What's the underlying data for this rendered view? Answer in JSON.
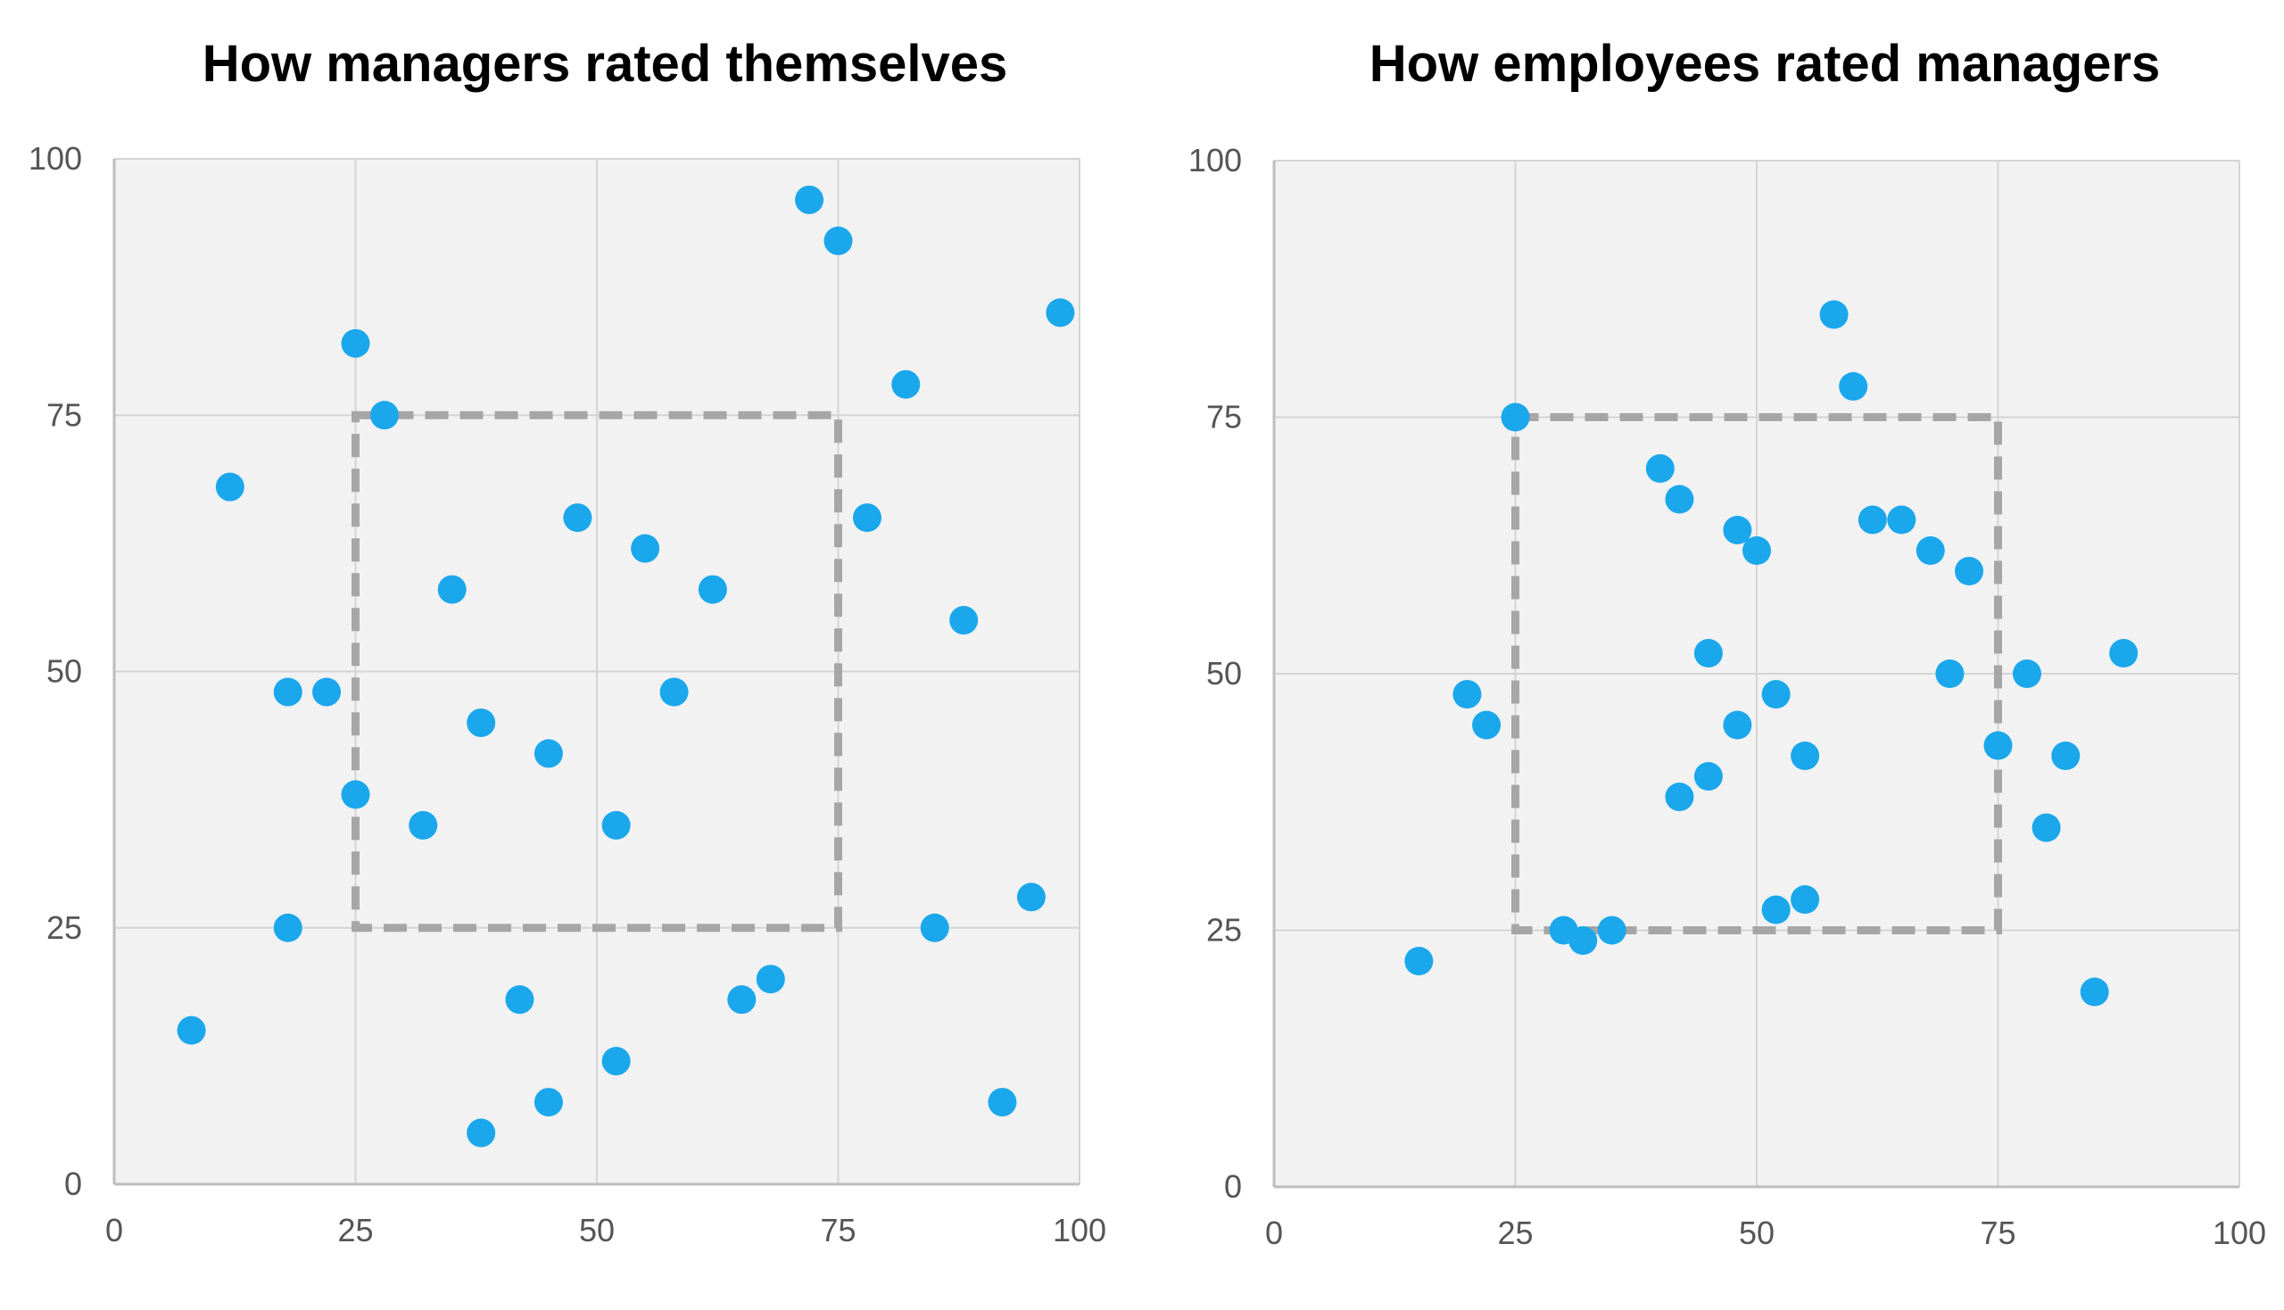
{
  "chart_data": [
    {
      "type": "scatter",
      "title": "How managers rated themselves",
      "xlabel": "",
      "ylabel": "",
      "xlim": [
        0,
        100
      ],
      "ylim": [
        0,
        100
      ],
      "xticks": [
        0,
        25,
        50,
        75,
        100
      ],
      "yticks": [
        0,
        25,
        50,
        75,
        100
      ],
      "grid": true,
      "highlight_box": {
        "x": [
          25,
          75
        ],
        "y": [
          25,
          75
        ],
        "style": "dashed",
        "color": "#a6a6a6"
      },
      "point_color": "#1aa7ec",
      "points": [
        {
          "x": 72,
          "y": 96
        },
        {
          "x": 75,
          "y": 92
        },
        {
          "x": 98,
          "y": 85
        },
        {
          "x": 25,
          "y": 82
        },
        {
          "x": 82,
          "y": 78
        },
        {
          "x": 28,
          "y": 75
        },
        {
          "x": 12,
          "y": 68
        },
        {
          "x": 48,
          "y": 65
        },
        {
          "x": 78,
          "y": 65
        },
        {
          "x": 55,
          "y": 62
        },
        {
          "x": 35,
          "y": 58
        },
        {
          "x": 62,
          "y": 58
        },
        {
          "x": 88,
          "y": 55
        },
        {
          "x": 18,
          "y": 48
        },
        {
          "x": 22,
          "y": 48
        },
        {
          "x": 58,
          "y": 48
        },
        {
          "x": 38,
          "y": 45
        },
        {
          "x": 45,
          "y": 42
        },
        {
          "x": 25,
          "y": 38
        },
        {
          "x": 32,
          "y": 35
        },
        {
          "x": 52,
          "y": 35
        },
        {
          "x": 95,
          "y": 28
        },
        {
          "x": 18,
          "y": 25
        },
        {
          "x": 85,
          "y": 25
        },
        {
          "x": 68,
          "y": 20
        },
        {
          "x": 42,
          "y": 18
        },
        {
          "x": 65,
          "y": 18
        },
        {
          "x": 8,
          "y": 15
        },
        {
          "x": 52,
          "y": 12
        },
        {
          "x": 45,
          "y": 8
        },
        {
          "x": 92,
          "y": 8
        },
        {
          "x": 38,
          "y": 5
        }
      ]
    },
    {
      "type": "scatter",
      "title": "How employees rated managers",
      "xlabel": "",
      "ylabel": "",
      "xlim": [
        0,
        100
      ],
      "ylim": [
        0,
        100
      ],
      "xticks": [
        0,
        25,
        50,
        75,
        100
      ],
      "yticks": [
        0,
        25,
        50,
        75,
        100
      ],
      "grid": true,
      "highlight_box": {
        "x": [
          25,
          75
        ],
        "y": [
          25,
          75
        ],
        "style": "dashed",
        "color": "#a6a6a6"
      },
      "point_color": "#1aa7ec",
      "points": [
        {
          "x": 58,
          "y": 85
        },
        {
          "x": 60,
          "y": 78
        },
        {
          "x": 25,
          "y": 75
        },
        {
          "x": 40,
          "y": 70
        },
        {
          "x": 42,
          "y": 67
        },
        {
          "x": 62,
          "y": 65
        },
        {
          "x": 65,
          "y": 65
        },
        {
          "x": 48,
          "y": 64
        },
        {
          "x": 50,
          "y": 62
        },
        {
          "x": 68,
          "y": 62
        },
        {
          "x": 72,
          "y": 60
        },
        {
          "x": 45,
          "y": 52
        },
        {
          "x": 88,
          "y": 52
        },
        {
          "x": 70,
          "y": 50
        },
        {
          "x": 78,
          "y": 50
        },
        {
          "x": 20,
          "y": 48
        },
        {
          "x": 52,
          "y": 48
        },
        {
          "x": 22,
          "y": 45
        },
        {
          "x": 48,
          "y": 45
        },
        {
          "x": 75,
          "y": 43
        },
        {
          "x": 55,
          "y": 42
        },
        {
          "x": 82,
          "y": 42
        },
        {
          "x": 45,
          "y": 40
        },
        {
          "x": 42,
          "y": 38
        },
        {
          "x": 80,
          "y": 35
        },
        {
          "x": 55,
          "y": 28
        },
        {
          "x": 52,
          "y": 27
        },
        {
          "x": 30,
          "y": 25
        },
        {
          "x": 35,
          "y": 25
        },
        {
          "x": 32,
          "y": 24
        },
        {
          "x": 15,
          "y": 22
        },
        {
          "x": 85,
          "y": 19
        }
      ]
    }
  ]
}
